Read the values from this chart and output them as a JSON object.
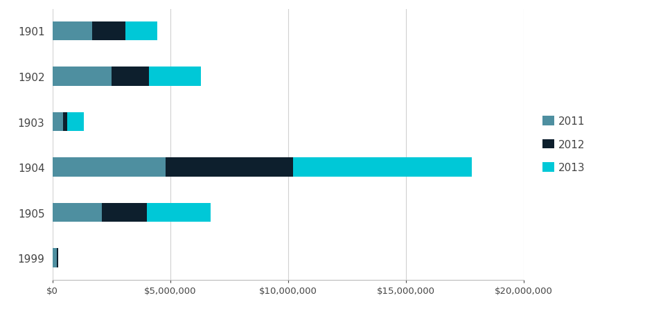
{
  "categories": [
    "1901",
    "1902",
    "1903",
    "1904",
    "1905",
    "1999"
  ],
  "series": {
    "2011": [
      1700000,
      2500000,
      450000,
      4800000,
      2100000,
      180000
    ],
    "2012": [
      1400000,
      1600000,
      180000,
      5400000,
      1900000,
      80000
    ],
    "2013": [
      1350000,
      2200000,
      700000,
      7600000,
      2700000,
      0
    ]
  },
  "colors": {
    "2011": "#4e8fa0",
    "2012": "#0d1f2d",
    "2013": "#00c8d7"
  },
  "legend_labels": [
    "2011",
    "2012",
    "2013"
  ],
  "xlim": [
    0,
    20000000
  ],
  "xticks": [
    0,
    5000000,
    10000000,
    15000000,
    20000000
  ],
  "xtick_labels": [
    "$0",
    "$5,000,000",
    "$10,000,000",
    "$15,000,000",
    "$20,000,000"
  ],
  "background_color": "#ffffff",
  "bar_height": 0.42
}
